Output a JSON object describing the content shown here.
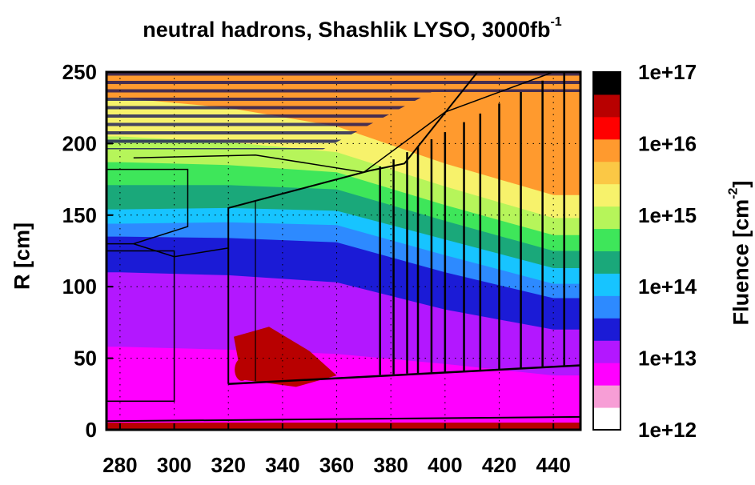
{
  "chart_data": {
    "type": "heatmap",
    "title": "neutral hadrons, Shashlik LYSO, 3000fb",
    "title_superscript": "-1",
    "xlabel": "",
    "ylabel": "R [cm]",
    "xlim": [
      275,
      450
    ],
    "ylim": [
      0,
      250
    ],
    "x_ticks": [
      280,
      300,
      320,
      340,
      360,
      380,
      400,
      420,
      440
    ],
    "y_ticks": [
      0,
      50,
      100,
      150,
      200,
      250
    ],
    "grid": true,
    "colorbar": {
      "label": "Fluence [cm",
      "label_superscript": "-2",
      "label_suffix": "]",
      "scale": "log",
      "range": [
        1000000000000.0,
        1e+17
      ],
      "tick_labels": [
        "1e+17",
        "1e+16",
        "1e+15",
        "1e+14",
        "1e+13",
        "1e+12"
      ],
      "colors_bottom_to_top": [
        "#ffffff",
        "#f79ed6",
        "#ff00ff",
        "#b317ff",
        "#1b1bd6",
        "#2d8aff",
        "#17c4ff",
        "#1aa87a",
        "#3ee65a",
        "#b6f55a",
        "#f7f26b",
        "#fbc845",
        "#ff9a2e",
        "#ff0000",
        "#b80000",
        "#000000"
      ]
    },
    "fluence_contours_decades": [
      {
        "level": 15.8,
        "R_at_x": [
          [
            280,
            262
          ],
          [
            320,
            250
          ],
          [
            360,
            230
          ],
          [
            400,
            200
          ],
          [
            440,
            178
          ]
        ]
      },
      {
        "level": 15.4,
        "R_at_x": [
          [
            280,
            232
          ],
          [
            320,
            225
          ],
          [
            360,
            212
          ],
          [
            400,
            186
          ],
          [
            440,
            164
          ]
        ]
      },
      {
        "level": 15.0,
        "R_at_x": [
          [
            280,
            205
          ],
          [
            320,
            201
          ],
          [
            360,
            194
          ],
          [
            400,
            170
          ],
          [
            440,
            148
          ]
        ]
      },
      {
        "level": 14.7,
        "R_at_x": [
          [
            280,
            187
          ],
          [
            320,
            185
          ],
          [
            360,
            180
          ],
          [
            400,
            157
          ],
          [
            440,
            136
          ]
        ]
      },
      {
        "level": 14.4,
        "R_at_x": [
          [
            280,
            171
          ],
          [
            320,
            171
          ],
          [
            360,
            168
          ],
          [
            400,
            146
          ],
          [
            440,
            125
          ]
        ]
      },
      {
        "level": 14.1,
        "R_at_x": [
          [
            280,
            154
          ],
          [
            320,
            155
          ],
          [
            360,
            153
          ],
          [
            400,
            133
          ],
          [
            440,
            113
          ]
        ]
      },
      {
        "level": 13.8,
        "R_at_x": [
          [
            280,
            144
          ],
          [
            320,
            145
          ],
          [
            360,
            143
          ],
          [
            400,
            122
          ],
          [
            440,
            102
          ]
        ]
      },
      {
        "level": 13.5,
        "R_at_x": [
          [
            280,
            135
          ],
          [
            320,
            134
          ],
          [
            360,
            131
          ],
          [
            400,
            110
          ],
          [
            440,
            92
          ]
        ]
      },
      {
        "level": 13.1,
        "R_at_x": [
          [
            280,
            110
          ],
          [
            320,
            108
          ],
          [
            360,
            103
          ],
          [
            400,
            84
          ],
          [
            440,
            70
          ]
        ]
      },
      {
        "level": 12.8,
        "R_at_x": [
          [
            280,
            58
          ],
          [
            320,
            56
          ],
          [
            360,
            53
          ],
          [
            400,
            46
          ],
          [
            440,
            38
          ]
        ]
      }
    ]
  }
}
